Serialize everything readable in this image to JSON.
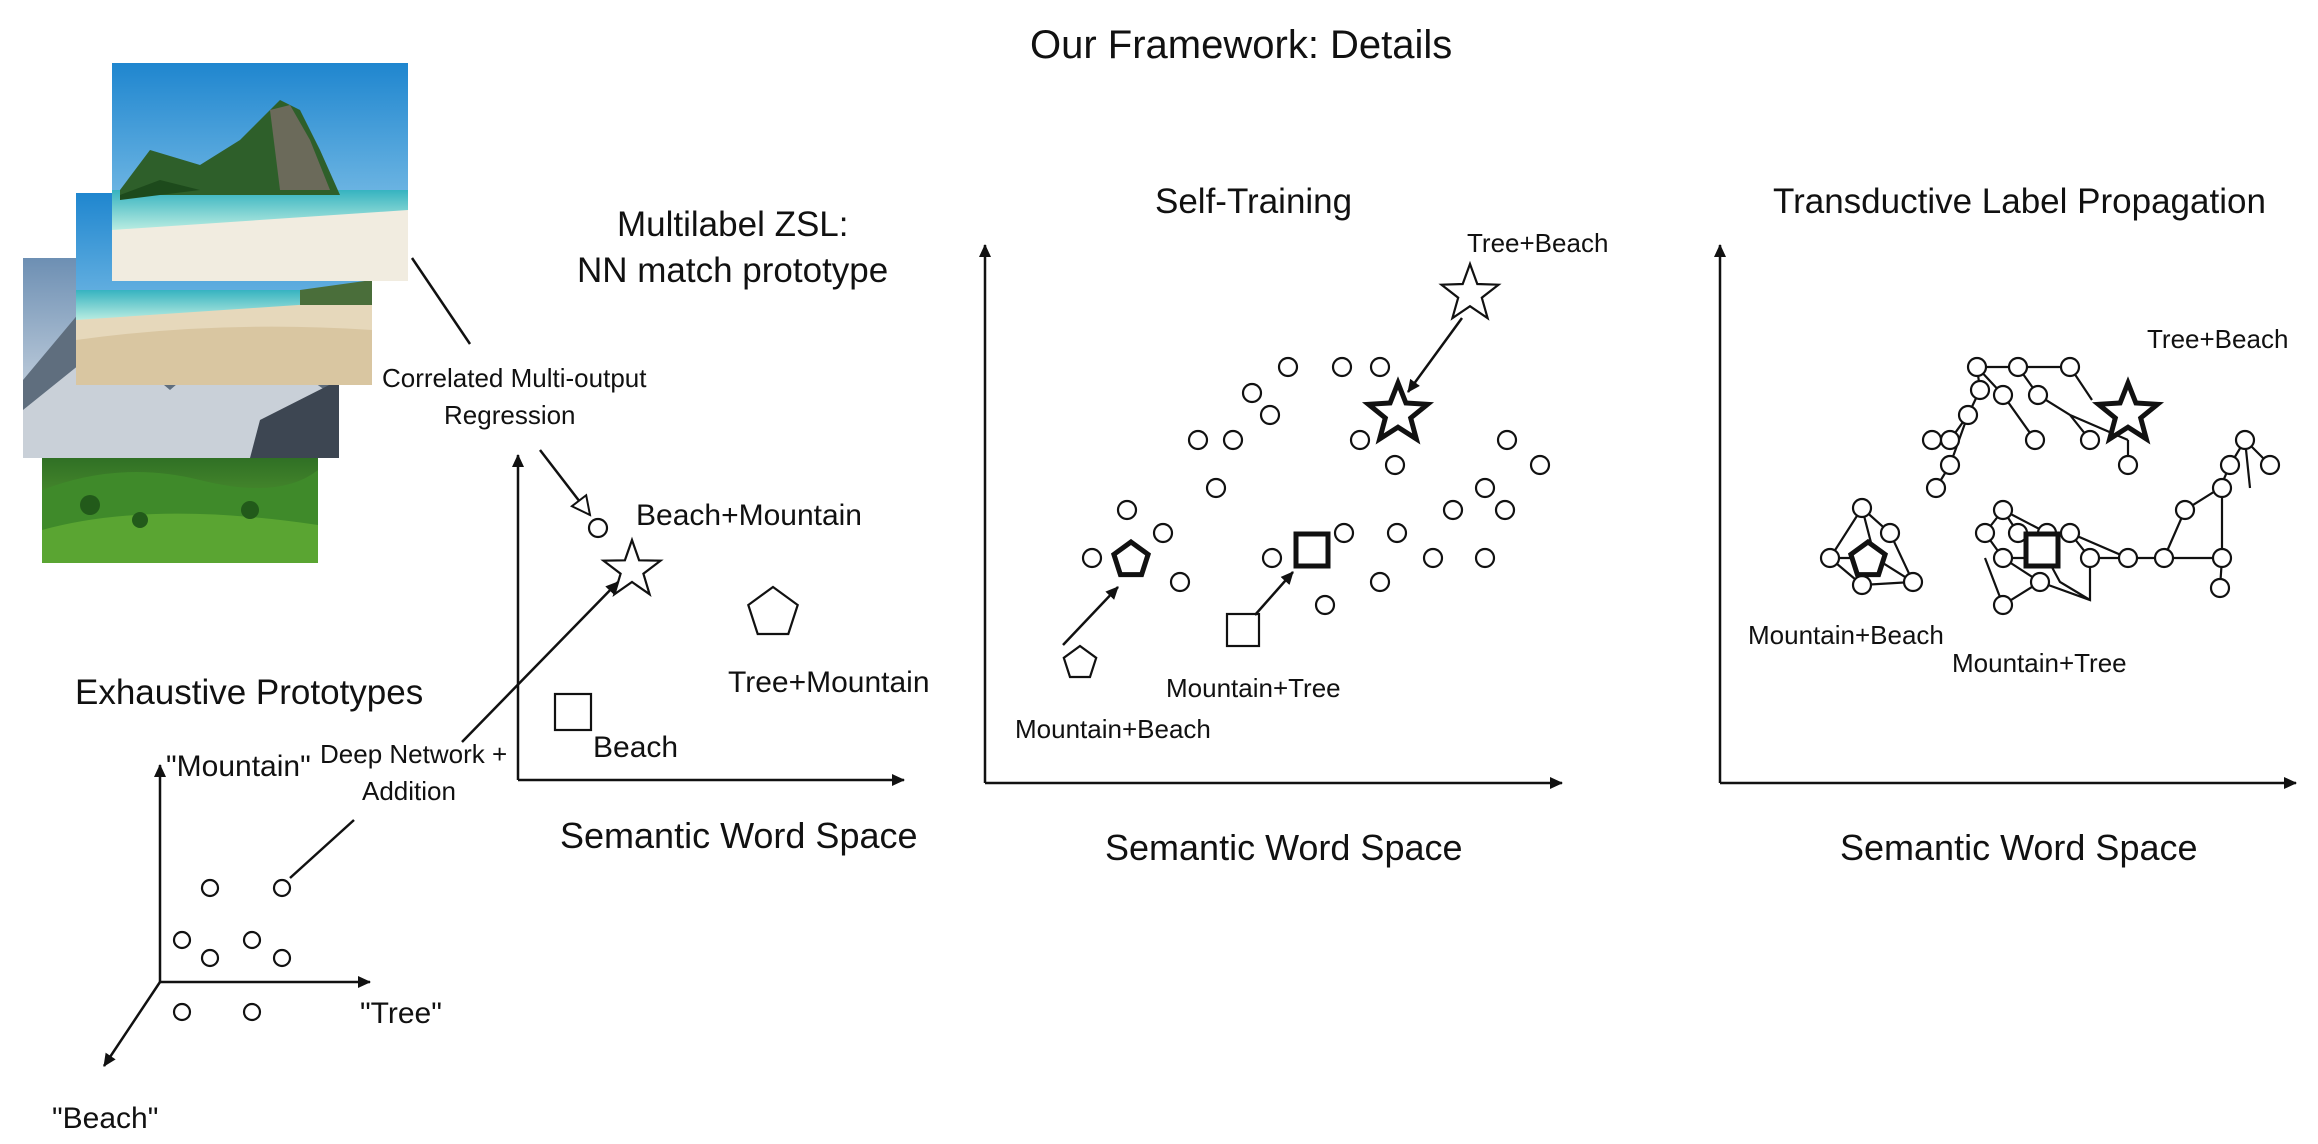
{
  "title": "Our Framework: Details",
  "panels": {
    "exhaustive": {
      "heading": "Exhaustive Prototypes",
      "axis_mountain": "\"Mountain\"",
      "axis_tree": "\"Tree\"",
      "axis_beach": "\"Beach\""
    },
    "regression_label_1": "Correlated Multi-output",
    "regression_label_2": "Regression",
    "deep_network_label_1": "Deep Network +",
    "deep_network_label_2": "Addition",
    "multilabel": {
      "heading_1": "Multilabel ZSL:",
      "heading_2": "NN match prototype",
      "label_beach_mountain": "Beach+Mountain",
      "label_tree_mountain": "Tree+Mountain",
      "label_beach": "Beach",
      "axis_label": "Semantic Word Space"
    },
    "self_training": {
      "heading": "Self-Training",
      "label_tree_beach": "Tree+Beach",
      "label_mountain_tree": "Mountain+Tree",
      "label_mountain_beach": "Mountain+Beach",
      "axis_label": "Semantic Word Space"
    },
    "transductive": {
      "heading": "Transductive Label Propagation",
      "label_tree_beach": "Tree+Beach",
      "label_mountain_beach": "Mountain+Beach",
      "label_mountain_tree": "Mountain+Tree",
      "axis_label": "Semantic Word Space"
    }
  },
  "colors": {
    "ink": "#111111",
    "sky": "#3d9fd8",
    "sea": "#5fc7c4",
    "sand": "#ece2cc",
    "rock_green": "#2f6d2a",
    "snow": "#d9dde2",
    "grass": "#4e9a2e"
  }
}
